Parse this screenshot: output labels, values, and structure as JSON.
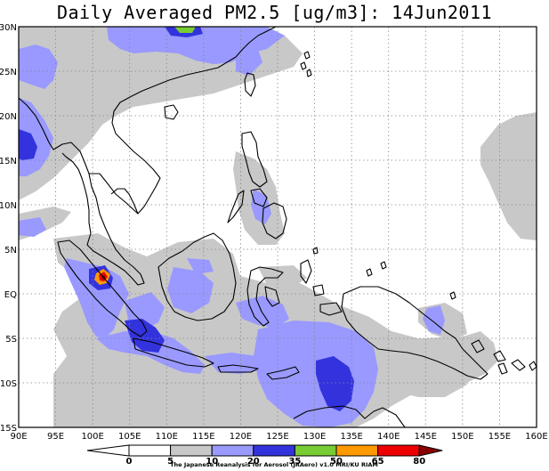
{
  "title": "Daily Averaged PM2.5 [ug/m3]: 14Jun2011",
  "map": {
    "lon_range": [
      90,
      160
    ],
    "lat_range": [
      -15,
      30
    ],
    "lon_labels": [
      "90E",
      "95E",
      "100E",
      "105E",
      "110E",
      "115E",
      "120E",
      "125E",
      "130E",
      "135E",
      "140E",
      "145E",
      "150E",
      "155E",
      "160E"
    ],
    "lat_labels": [
      "30N",
      "25N",
      "20N",
      "15N",
      "10N",
      "5N",
      "EQ",
      "5S",
      "10S",
      "15S"
    ],
    "grid": true
  },
  "colorbar": {
    "levels": [
      "0",
      "5",
      "10",
      "20",
      "35",
      "50",
      "65",
      "80"
    ],
    "colors": {
      "below": "#ffffff",
      "c0_5": "#ffffff",
      "c5_10": "#c8c8c8",
      "c10_20": "#9999ff",
      "c20_35": "#3333dd",
      "c35_50": "#77cc33",
      "c50_65": "#ff9900",
      "c65_80": "#ee0000",
      "above": "#8a0000"
    }
  },
  "credit": "The Japanese Reanalysis for Aerosol (JRAero) v1.0 MRI/KU RIAM"
}
